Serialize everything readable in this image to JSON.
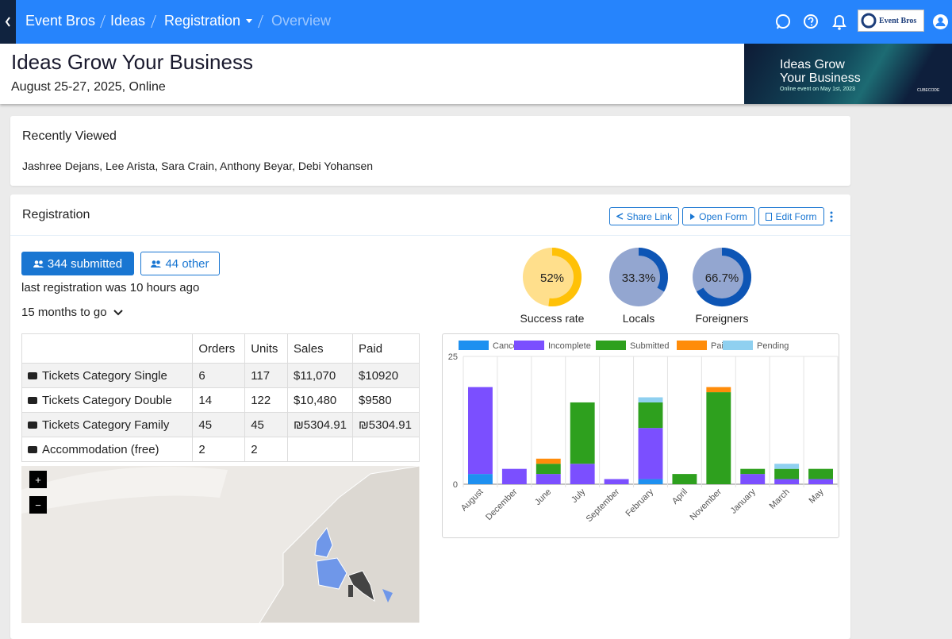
{
  "nav": {
    "breadcrumbs": [
      "Event Bros",
      "Ideas",
      "Registration",
      "Overview"
    ],
    "logo": "Event Bros"
  },
  "header": {
    "title": "Ideas Grow Your Business",
    "subtitle": "August 25-27, 2025, Online",
    "banner": {
      "title_lines": [
        "Ideas Grow",
        "Your Business"
      ],
      "note": "Online event on May 1st, 2023",
      "brand": "CUBECODE"
    }
  },
  "recent": {
    "title": "Recently Viewed",
    "names": "Jashree Dejans, Lee Arista, Sara Crain, Anthony Beyar, Debi Yohansen"
  },
  "registration": {
    "title": "Registration",
    "actions": [
      "Share Link",
      "Open Form",
      "Edit Form"
    ],
    "submitted": "344 submitted",
    "other": "44 other",
    "last": "last registration was 10 hours ago",
    "countdown": "15 months to go",
    "table": {
      "columns": [
        "Orders",
        "Units",
        "Sales",
        "Paid"
      ],
      "rows": [
        [
          "Tickets Category Single",
          "6",
          "117",
          "$11,070",
          "$10920"
        ],
        [
          "Tickets Category Double",
          "14",
          "122",
          "$10,480",
          "$9580"
        ],
        [
          "Tickets Category Family",
          "45",
          "45",
          "₪5304.91",
          "₪5304.91"
        ],
        [
          "Accommodation (free)",
          "2",
          "2",
          null,
          null
        ]
      ]
    },
    "map_controls": [
      "+",
      "−"
    ]
  },
  "chart_data": [
    {
      "type": "pie",
      "title": "Success rate",
      "values": [
        52
      ],
      "value_labels": [
        "52%"
      ],
      "colors": [
        "#ffc107",
        "#ffdf8c"
      ]
    },
    {
      "type": "pie",
      "title": "Locals",
      "values": [
        33.3
      ],
      "value_labels": [
        "33.3%"
      ],
      "colors": [
        "#0d55b5",
        "#93a6d0"
      ]
    },
    {
      "type": "pie",
      "title": "Foreigners",
      "values": [
        66.7
      ],
      "value_labels": [
        "66.7%"
      ],
      "colors": [
        "#0d55b5",
        "#93a6d0"
      ]
    },
    {
      "type": "bar",
      "stacked": true,
      "categories": [
        "August",
        "December",
        "June",
        "July",
        "September",
        "February",
        "April",
        "November",
        "January",
        "March",
        "May"
      ],
      "series": [
        {
          "name": "Canceled",
          "color": "#1e90f0",
          "values": [
            2,
            0,
            0,
            0,
            0,
            1,
            0,
            0,
            0,
            0,
            0
          ]
        },
        {
          "name": "Incomplete",
          "color": "#7b4fff",
          "values": [
            17,
            3,
            2,
            4,
            1,
            10,
            0,
            0,
            2,
            1,
            1
          ]
        },
        {
          "name": "Submitted",
          "color": "#2ea01e",
          "values": [
            0,
            0,
            2,
            12,
            0,
            5,
            2,
            18,
            1,
            2,
            2
          ]
        },
        {
          "name": "Paid",
          "color": "#ff8c0a",
          "values": [
            0,
            0,
            1,
            0,
            0,
            0,
            0,
            1,
            0,
            0,
            0
          ]
        },
        {
          "name": "Pending",
          "color": "#8fd0f0",
          "values": [
            0,
            0,
            0,
            0,
            0,
            1,
            0,
            0,
            0,
            1,
            0
          ]
        }
      ],
      "ylim": [
        0,
        25
      ],
      "yticks": [
        0,
        25
      ],
      "grid": true
    }
  ]
}
